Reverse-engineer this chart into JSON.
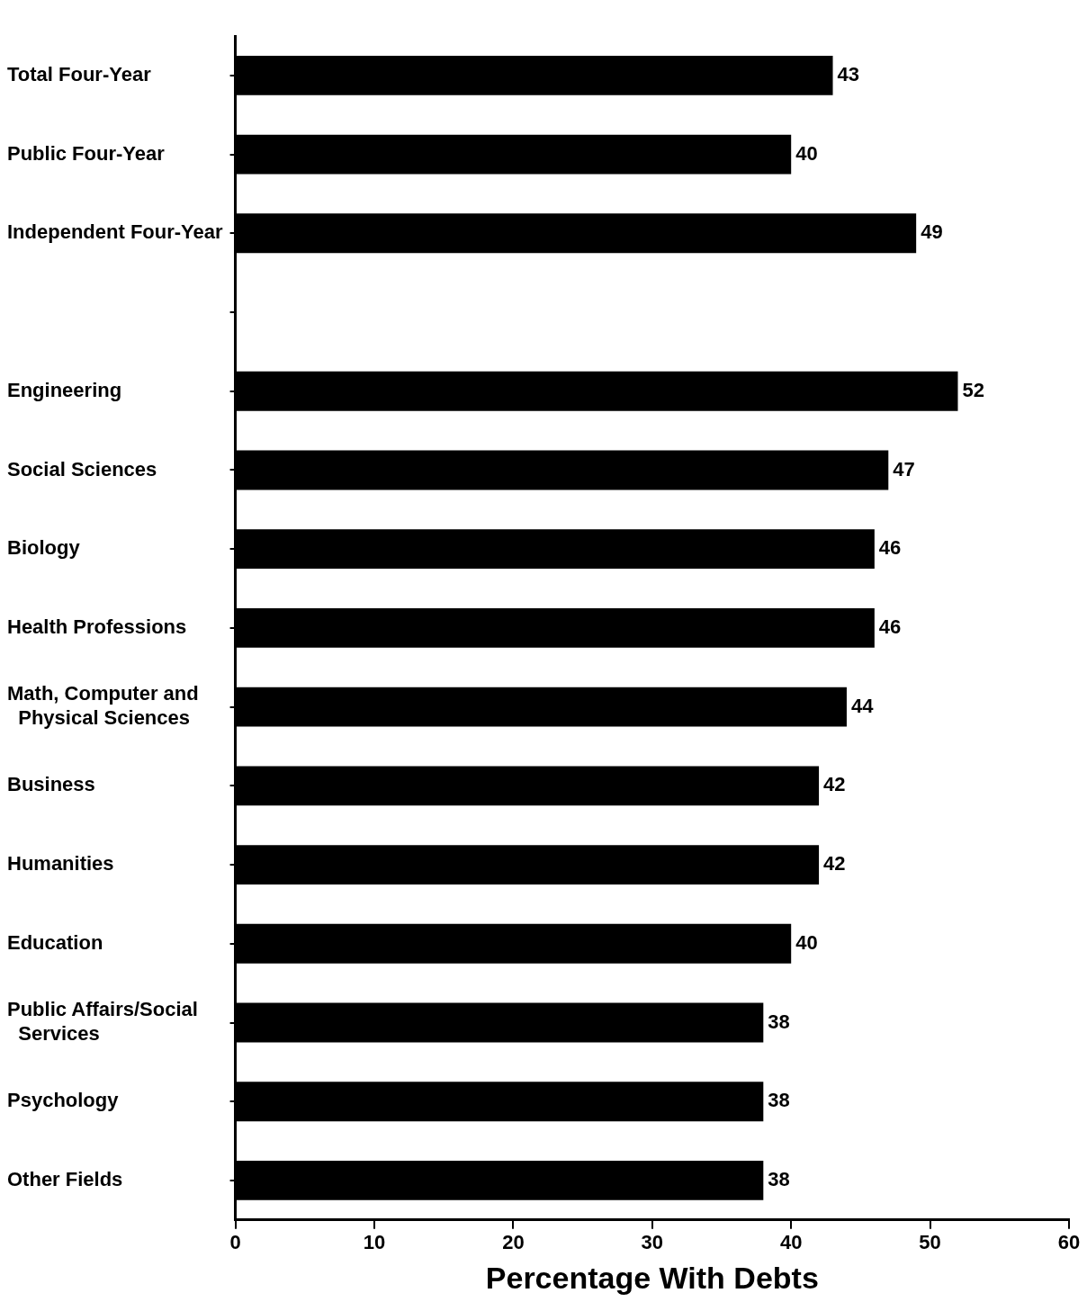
{
  "chart_data": {
    "type": "bar",
    "orientation": "horizontal",
    "xlabel": "Percentage With Debts",
    "categories": [
      "Total Four-Year",
      "Public Four-Year",
      "Independent Four-Year",
      null,
      "Engineering",
      "Social Sciences",
      "Biology",
      "Health Professions",
      "Math, Computer and\n  Physical Sciences",
      "Business",
      "Humanities",
      "Education",
      "Public Affairs/Social\n  Services",
      "Psychology",
      "Other Fields"
    ],
    "values": [
      43,
      40,
      49,
      null,
      52,
      47,
      46,
      46,
      44,
      42,
      42,
      40,
      38,
      38,
      38
    ],
    "color": "#000000",
    "xlim": [
      0,
      60
    ],
    "xticks": [
      0,
      10,
      20,
      30,
      40,
      50,
      60
    ],
    "data_labels": true,
    "grid": false,
    "legend": false
  }
}
